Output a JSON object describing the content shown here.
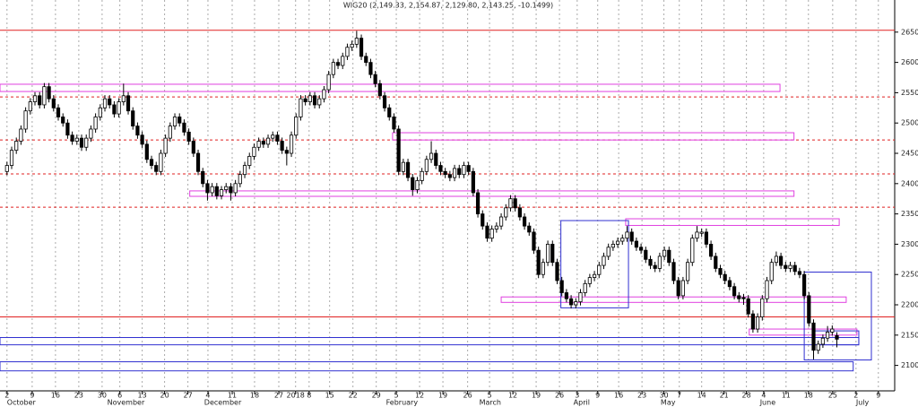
{
  "chart_data": {
    "type": "candlestick",
    "title": "WIG20 (2,149.33, 2,154.87, 2,129.80, 2,143.25, -10.1499)",
    "xlim": [
      -1.5,
      190.4
    ],
    "ylim": [
      2058,
      2703
    ],
    "yticks": [
      2100,
      2150,
      2200,
      2250,
      2300,
      2350,
      2400,
      2450,
      2500,
      2550,
      2600,
      2650
    ],
    "xticks": [
      {
        "value": 0,
        "label": "2"
      },
      {
        "value": 5.4,
        "label": "9"
      },
      {
        "value": 10.4,
        "label": "16"
      },
      {
        "value": 15.4,
        "label": "23"
      },
      {
        "value": 20.4,
        "label": "30"
      },
      {
        "value": 24.2,
        "label": "6"
      },
      {
        "value": 29,
        "label": "13"
      },
      {
        "value": 33.8,
        "label": "20"
      },
      {
        "value": 38.8,
        "label": "27"
      },
      {
        "value": 43.1,
        "label": "4"
      },
      {
        "value": 48.3,
        "label": "11"
      },
      {
        "value": 53.1,
        "label": "18"
      },
      {
        "value": 58.3,
        "label": "27"
      },
      {
        "value": 61.9,
        "label": "2018"
      },
      {
        "value": 64.8,
        "label": "8"
      },
      {
        "value": 69.2,
        "label": "15"
      },
      {
        "value": 74.2,
        "label": "22"
      },
      {
        "value": 79.2,
        "label": "29"
      },
      {
        "value": 83.5,
        "label": "5"
      },
      {
        "value": 88.5,
        "label": "12"
      },
      {
        "value": 93.5,
        "label": "19"
      },
      {
        "value": 98.8,
        "label": "26"
      },
      {
        "value": 103.5,
        "label": "5"
      },
      {
        "value": 108.5,
        "label": "12"
      },
      {
        "value": 113.5,
        "label": "19"
      },
      {
        "value": 118.5,
        "label": "26"
      },
      {
        "value": 122.3,
        "label": "3"
      },
      {
        "value": 126.7,
        "label": "9"
      },
      {
        "value": 131.2,
        "label": "16"
      },
      {
        "value": 136.2,
        "label": "23"
      },
      {
        "value": 140.9,
        "label": "30"
      },
      {
        "value": 144.2,
        "label": "7"
      },
      {
        "value": 149,
        "label": "14"
      },
      {
        "value": 153.8,
        "label": "21"
      },
      {
        "value": 158.6,
        "label": "28"
      },
      {
        "value": 162.3,
        "label": "4"
      },
      {
        "value": 167.1,
        "label": "11"
      },
      {
        "value": 171.9,
        "label": "18"
      },
      {
        "value": 177.1,
        "label": "25"
      },
      {
        "value": 182.1,
        "label": "2"
      },
      {
        "value": 186.9,
        "label": "9"
      }
    ],
    "months": [
      {
        "value": 0,
        "label": "October"
      },
      {
        "value": 21.5,
        "label": "November"
      },
      {
        "value": 42.3,
        "label": "December"
      },
      {
        "value": 81.3,
        "label": "February"
      },
      {
        "value": 101.3,
        "label": "March"
      },
      {
        "value": 121.5,
        "label": "April"
      },
      {
        "value": 140.2,
        "label": "May"
      },
      {
        "value": 161.5,
        "label": "June"
      },
      {
        "value": 182.1,
        "label": "July"
      }
    ],
    "up_color": "#ffffff",
    "down_color": "#000000",
    "levels": [
      {
        "value": 2653,
        "color": "#e02020",
        "dashed": false
      },
      {
        "value": 2180,
        "color": "#e02020",
        "dashed": false
      },
      {
        "value": 2543,
        "color": "#e02020",
        "dashed": true
      },
      {
        "value": 2472,
        "color": "#e02020",
        "dashed": true
      },
      {
        "value": 2416,
        "color": "#e02020",
        "dashed": true
      },
      {
        "value": 2361,
        "color": "#e02020",
        "dashed": true
      }
    ],
    "boxes": [
      {
        "x": [
          -1.5,
          165.8
        ],
        "y": [
          2552,
          2564
        ],
        "color": "#e040e0"
      },
      {
        "x": [
          82.7,
          168.8
        ],
        "y": [
          2472,
          2484
        ],
        "color": "#e040e0"
      },
      {
        "x": [
          39.2,
          168.8
        ],
        "y": [
          2379,
          2388
        ],
        "color": "#e040e0"
      },
      {
        "x": [
          132.7,
          178.5
        ],
        "y": [
          2331,
          2342
        ],
        "color": "#e040e0"
      },
      {
        "x": [
          106,
          180
        ],
        "y": [
          2204,
          2213
        ],
        "color": "#e040e0"
      },
      {
        "x": [
          159.2,
          182.3
        ],
        "y": [
          2150,
          2160
        ],
        "color": "#e040e0"
      },
      {
        "x": [
          -1.5,
          182.7
        ],
        "y": [
          2134,
          2146
        ],
        "color": "#3030d0"
      },
      {
        "x": [
          -1.5,
          181.5
        ],
        "y": [
          2091,
          2106
        ],
        "color": "#3030d0"
      },
      {
        "x": [
          118.8,
          133.3
        ],
        "y": [
          2195,
          2339
        ],
        "color": "#3030d0"
      },
      {
        "x": [
          171,
          185.4
        ],
        "y": [
          2109,
          2254
        ],
        "color": "#3030d0"
      },
      {
        "x": [
          173,
          182.7
        ],
        "y": [
          2134,
          2157
        ],
        "color": "#3030d0"
      }
    ],
    "candles": [
      [
        2420,
        2436,
        2414,
        2430
      ],
      [
        2430,
        2461,
        2424,
        2455
      ],
      [
        2455,
        2476,
        2449,
        2470
      ],
      [
        2470,
        2496,
        2464,
        2490
      ],
      [
        2490,
        2526,
        2484,
        2520
      ],
      [
        2520,
        2541,
        2514,
        2535
      ],
      [
        2535,
        2551,
        2529,
        2545
      ],
      [
        2545,
        2551,
        2524,
        2530
      ],
      [
        2530,
        2566,
        2524,
        2560
      ],
      [
        2560,
        2566,
        2534,
        2540
      ],
      [
        2540,
        2546,
        2519,
        2525
      ],
      [
        2525,
        2531,
        2504,
        2510
      ],
      [
        2510,
        2516,
        2494,
        2500
      ],
      [
        2500,
        2506,
        2474,
        2480
      ],
      [
        2480,
        2486,
        2464,
        2470
      ],
      [
        2470,
        2481,
        2464,
        2475
      ],
      [
        2475,
        2481,
        2454,
        2460
      ],
      [
        2460,
        2481,
        2454,
        2475
      ],
      [
        2475,
        2496,
        2469,
        2490
      ],
      [
        2490,
        2516,
        2484,
        2510
      ],
      [
        2510,
        2531,
        2504,
        2525
      ],
      [
        2525,
        2546,
        2519,
        2540
      ],
      [
        2540,
        2546,
        2524,
        2530
      ],
      [
        2530,
        2536,
        2509,
        2515
      ],
      [
        2515,
        2541,
        2509,
        2535
      ],
      [
        2535,
        2565,
        2529,
        2545
      ],
      [
        2545,
        2551,
        2514,
        2520
      ],
      [
        2520,
        2526,
        2489,
        2495
      ],
      [
        2495,
        2501,
        2474,
        2480
      ],
      [
        2480,
        2486,
        2459,
        2465
      ],
      [
        2465,
        2471,
        2434,
        2440
      ],
      [
        2440,
        2446,
        2424,
        2430
      ],
      [
        2430,
        2436,
        2414,
        2420
      ],
      [
        2420,
        2456,
        2414,
        2450
      ],
      [
        2450,
        2481,
        2444,
        2475
      ],
      [
        2475,
        2501,
        2469,
        2495
      ],
      [
        2495,
        2516,
        2489,
        2510
      ],
      [
        2510,
        2516,
        2494,
        2500
      ],
      [
        2500,
        2506,
        2479,
        2485
      ],
      [
        2485,
        2491,
        2464,
        2470
      ],
      [
        2470,
        2476,
        2444,
        2450
      ],
      [
        2450,
        2456,
        2414,
        2420
      ],
      [
        2420,
        2426,
        2394,
        2400
      ],
      [
        2400,
        2406,
        2372,
        2385
      ],
      [
        2385,
        2401,
        2379,
        2395
      ],
      [
        2395,
        2401,
        2374,
        2380
      ],
      [
        2380,
        2396,
        2374,
        2390
      ],
      [
        2390,
        2401,
        2384,
        2395
      ],
      [
        2395,
        2401,
        2372,
        2385
      ],
      [
        2385,
        2406,
        2379,
        2400
      ],
      [
        2400,
        2421,
        2394,
        2415
      ],
      [
        2415,
        2436,
        2409,
        2430
      ],
      [
        2430,
        2451,
        2424,
        2445
      ],
      [
        2445,
        2466,
        2439,
        2460
      ],
      [
        2460,
        2476,
        2454,
        2470
      ],
      [
        2470,
        2476,
        2459,
        2465
      ],
      [
        2465,
        2481,
        2459,
        2475
      ],
      [
        2475,
        2486,
        2469,
        2480
      ],
      [
        2480,
        2486,
        2464,
        2470
      ],
      [
        2470,
        2476,
        2449,
        2455
      ],
      [
        2455,
        2461,
        2430,
        2450
      ],
      [
        2450,
        2486,
        2444,
        2480
      ],
      [
        2480,
        2516,
        2474,
        2510
      ],
      [
        2510,
        2546,
        2504,
        2540
      ],
      [
        2540,
        2546,
        2529,
        2535
      ],
      [
        2535,
        2551,
        2529,
        2545
      ],
      [
        2545,
        2551,
        2524,
        2530
      ],
      [
        2530,
        2546,
        2524,
        2540
      ],
      [
        2540,
        2561,
        2534,
        2555
      ],
      [
        2555,
        2586,
        2549,
        2580
      ],
      [
        2580,
        2606,
        2574,
        2600
      ],
      [
        2600,
        2606,
        2589,
        2595
      ],
      [
        2595,
        2616,
        2589,
        2610
      ],
      [
        2610,
        2631,
        2604,
        2625
      ],
      [
        2625,
        2636,
        2619,
        2630
      ],
      [
        2630,
        2652,
        2624,
        2640
      ],
      [
        2640,
        2646,
        2604,
        2610
      ],
      [
        2610,
        2616,
        2594,
        2600
      ],
      [
        2600,
        2606,
        2574,
        2580
      ],
      [
        2580,
        2586,
        2559,
        2565
      ],
      [
        2565,
        2571,
        2539,
        2545
      ],
      [
        2545,
        2551,
        2519,
        2525
      ],
      [
        2525,
        2531,
        2504,
        2510
      ],
      [
        2510,
        2516,
        2484,
        2490
      ],
      [
        2490,
        2496,
        2414,
        2420
      ],
      [
        2420,
        2441,
        2414,
        2435
      ],
      [
        2435,
        2441,
        2404,
        2410
      ],
      [
        2410,
        2416,
        2380,
        2390
      ],
      [
        2390,
        2411,
        2384,
        2405
      ],
      [
        2405,
        2426,
        2399,
        2420
      ],
      [
        2420,
        2446,
        2414,
        2440
      ],
      [
        2440,
        2470,
        2434,
        2450
      ],
      [
        2450,
        2456,
        2424,
        2430
      ],
      [
        2430,
        2436,
        2414,
        2420
      ],
      [
        2420,
        2426,
        2409,
        2415
      ],
      [
        2415,
        2421,
        2404,
        2410
      ],
      [
        2410,
        2431,
        2404,
        2425
      ],
      [
        2425,
        2431,
        2409,
        2415
      ],
      [
        2415,
        2436,
        2409,
        2430
      ],
      [
        2430,
        2436,
        2414,
        2420
      ],
      [
        2420,
        2426,
        2379,
        2385
      ],
      [
        2385,
        2391,
        2344,
        2350
      ],
      [
        2350,
        2356,
        2324,
        2330
      ],
      [
        2330,
        2336,
        2304,
        2310
      ],
      [
        2310,
        2331,
        2304,
        2325
      ],
      [
        2325,
        2336,
        2319,
        2330
      ],
      [
        2330,
        2351,
        2324,
        2345
      ],
      [
        2345,
        2366,
        2339,
        2360
      ],
      [
        2360,
        2381,
        2354,
        2375
      ],
      [
        2375,
        2381,
        2354,
        2360
      ],
      [
        2360,
        2366,
        2339,
        2345
      ],
      [
        2345,
        2351,
        2324,
        2330
      ],
      [
        2330,
        2336,
        2314,
        2320
      ],
      [
        2320,
        2326,
        2284,
        2290
      ],
      [
        2290,
        2296,
        2244,
        2250
      ],
      [
        2250,
        2276,
        2244,
        2270
      ],
      [
        2270,
        2306,
        2264,
        2300
      ],
      [
        2300,
        2306,
        2264,
        2270
      ],
      [
        2270,
        2276,
        2234,
        2240
      ],
      [
        2240,
        2246,
        2214,
        2220
      ],
      [
        2220,
        2226,
        2204,
        2210
      ],
      [
        2210,
        2216,
        2194,
        2200
      ],
      [
        2200,
        2211,
        2194,
        2205
      ],
      [
        2205,
        2226,
        2199,
        2220
      ],
      [
        2220,
        2241,
        2214,
        2235
      ],
      [
        2235,
        2251,
        2229,
        2245
      ],
      [
        2245,
        2256,
        2239,
        2250
      ],
      [
        2250,
        2271,
        2244,
        2265
      ],
      [
        2265,
        2286,
        2259,
        2280
      ],
      [
        2280,
        2301,
        2274,
        2295
      ],
      [
        2295,
        2306,
        2289,
        2300
      ],
      [
        2300,
        2311,
        2294,
        2305
      ],
      [
        2305,
        2316,
        2299,
        2310
      ],
      [
        2310,
        2330,
        2304,
        2320
      ],
      [
        2320,
        2326,
        2299,
        2305
      ],
      [
        2305,
        2311,
        2289,
        2295
      ],
      [
        2295,
        2301,
        2284,
        2290
      ],
      [
        2290,
        2296,
        2269,
        2275
      ],
      [
        2275,
        2281,
        2259,
        2265
      ],
      [
        2265,
        2271,
        2254,
        2260
      ],
      [
        2260,
        2286,
        2254,
        2280
      ],
      [
        2280,
        2296,
        2274,
        2290
      ],
      [
        2290,
        2296,
        2264,
        2270
      ],
      [
        2270,
        2276,
        2234,
        2240
      ],
      [
        2240,
        2246,
        2209,
        2215
      ],
      [
        2215,
        2246,
        2209,
        2240
      ],
      [
        2240,
        2276,
        2234,
        2270
      ],
      [
        2270,
        2316,
        2264,
        2310
      ],
      [
        2310,
        2330,
        2304,
        2320
      ],
      [
        2318,
        2326,
        2312,
        2320
      ],
      [
        2320,
        2326,
        2294,
        2300
      ],
      [
        2300,
        2306,
        2274,
        2280
      ],
      [
        2280,
        2286,
        2254,
        2260
      ],
      [
        2260,
        2266,
        2244,
        2250
      ],
      [
        2250,
        2256,
        2234,
        2240
      ],
      [
        2240,
        2246,
        2224,
        2230
      ],
      [
        2230,
        2236,
        2209,
        2215
      ],
      [
        2215,
        2221,
        2204,
        2210
      ],
      [
        2212,
        2218,
        2200,
        2210
      ],
      [
        2210,
        2216,
        2179,
        2185
      ],
      [
        2185,
        2191,
        2154,
        2160
      ],
      [
        2160,
        2186,
        2154,
        2180
      ],
      [
        2180,
        2216,
        2174,
        2210
      ],
      [
        2210,
        2246,
        2204,
        2240
      ],
      [
        2240,
        2276,
        2234,
        2270
      ],
      [
        2270,
        2288,
        2264,
        2280
      ],
      [
        2280,
        2286,
        2259,
        2265
      ],
      [
        2265,
        2271,
        2254,
        2260
      ],
      [
        2260,
        2271,
        2254,
        2265
      ],
      [
        2265,
        2271,
        2249,
        2255
      ],
      [
        2255,
        2261,
        2244,
        2250
      ],
      [
        2250,
        2256,
        2209,
        2215
      ],
      [
        2215,
        2221,
        2164,
        2170
      ],
      [
        2170,
        2176,
        2110,
        2125
      ],
      [
        2125,
        2141,
        2119,
        2135
      ],
      [
        2135,
        2151,
        2129,
        2145
      ],
      [
        2145,
        2165,
        2139,
        2155
      ],
      [
        2155,
        2166,
        2149,
        2160
      ],
      [
        2149.33,
        2154.87,
        2129.8,
        2143.25
      ]
    ]
  }
}
